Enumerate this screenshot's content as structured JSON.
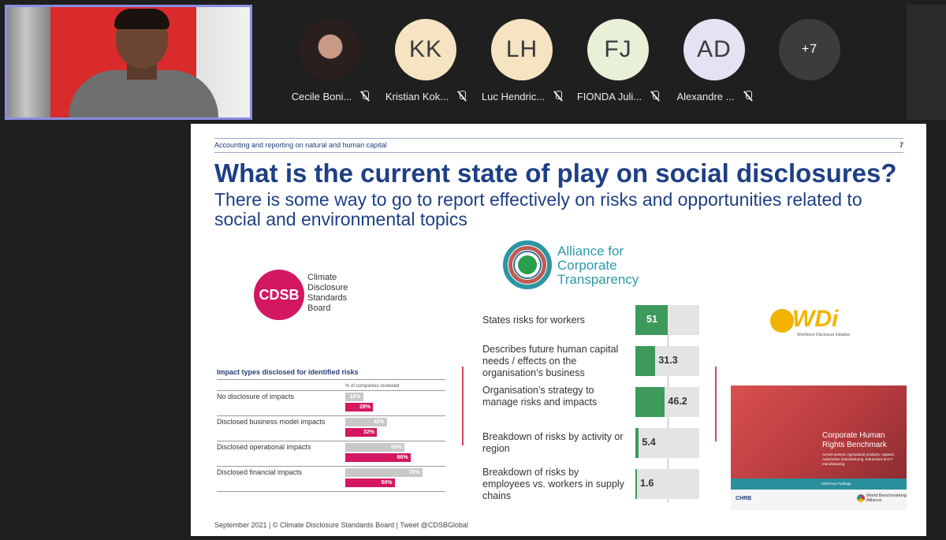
{
  "participants": [
    {
      "initials": "",
      "name": "Cecile Boni...",
      "color": "",
      "photo": true
    },
    {
      "initials": "KK",
      "name": "Kristian Kok...",
      "color": "#f5e3c2"
    },
    {
      "initials": "LH",
      "name": "Luc Hendric...",
      "color": "#f5e3c2"
    },
    {
      "initials": "FJ",
      "name": "FIONDA Juli...",
      "color": "#e9f0d8"
    },
    {
      "initials": "AD",
      "name": "Alexandre ...",
      "color": "#e3e3f3"
    }
  ],
  "more_count": "+7",
  "slide": {
    "header": "Accounting and reporting on natural and human capital",
    "page_number": "7",
    "title": "What is the current state of play on social disclosures?",
    "subtitle": "There is some way to go to report effectively on risks and opportunities related to social and environmental topics",
    "cdsb": {
      "logo_text": "CDSB",
      "name_lines": [
        "Climate",
        "Disclosure",
        "Standards",
        "Board"
      ]
    },
    "impact_chart": {
      "title": "Impact types disclosed for identified risks",
      "pct_label": "% of companies reviewed",
      "rows": [
        {
          "label": "No disclosure of impacts",
          "grey": 18,
          "grey_text": "18%",
          "pink": 28,
          "pink_text": "28%"
        },
        {
          "label": "Disclosed business model impacts",
          "grey": 42,
          "grey_text": "42%",
          "pink": 32,
          "pink_text": "32%"
        },
        {
          "label": "Disclosed operational impacts",
          "grey": 60,
          "grey_text": "60%",
          "pink": 66,
          "pink_text": "66%"
        },
        {
          "label": "Disclosed financial impacts",
          "grey": 78,
          "grey_text": "78%",
          "pink": 50,
          "pink_text": "50%"
        }
      ]
    },
    "act": {
      "logo_lines": [
        "Alliance for",
        "Corporate",
        "Transparency"
      ]
    },
    "act_chart": {
      "max": 100,
      "rows": [
        {
          "label": "States risks for workers",
          "value": 51,
          "value_text": "51"
        },
        {
          "label": "Describes future human capital needs / effects on the organisation’s business",
          "value": 31.3,
          "value_text": "31.3"
        },
        {
          "label": "Organisation’s strategy to manage risks and impacts",
          "value": 46.2,
          "value_text": "46.2"
        },
        {
          "label": "Breakdown of risks by activity or region",
          "value": 5.4,
          "value_text": "5.4"
        },
        {
          "label": "Breakdown of risks by employees vs. workers in supply chains",
          "value": 1.6,
          "value_text": "1.6"
        }
      ]
    },
    "wdi": {
      "logo": "WDi",
      "tagline": "Workforce Disclosure Initiative"
    },
    "chrb": {
      "title": "Corporate Human Rights Benchmark",
      "sectors": "Across sectors: Agricultural products, Apparel, Automotive manufacturing, Extractives & ICT manufacturing",
      "band": "2020 Key Findings",
      "left_logo": "CHRB",
      "right_logo": "World Benchmarking Alliance"
    },
    "footer": "September 2021 | © Climate Disclosure Standards Board | Tweet @CDSBGlobal"
  },
  "colors": {
    "title_blue": "#1e3f85",
    "cdsb_pink": "#d31761",
    "act_green": "#3d9a5c",
    "active_speaker_border": "#8a8fe0"
  }
}
